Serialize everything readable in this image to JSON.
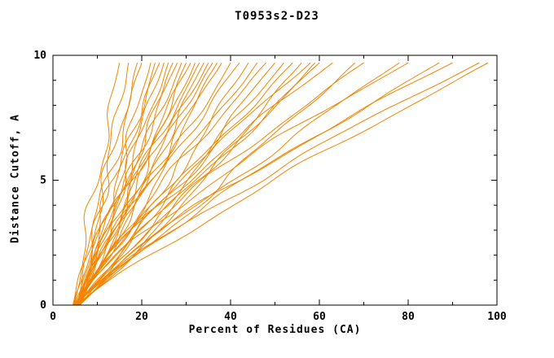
{
  "chart_data": {
    "type": "line",
    "title": "T0953s2-D23",
    "xlabel": "Percent of Residues (CA)",
    "ylabel": "Distance Cutoff, A",
    "xlim": [
      0,
      100
    ],
    "ylim": [
      0,
      10
    ],
    "x_ticks": [
      0,
      20,
      40,
      60,
      80,
      100
    ],
    "y_ticks": [
      0,
      5,
      10
    ],
    "x_minor_step": 10,
    "y_minor_step": 1,
    "grid": false,
    "legend": "none",
    "line_color": "#f28500",
    "axis_color": "#000000",
    "background": "#ffffff",
    "curve_top_y": 9.7,
    "wiggle": 1.1,
    "series": [
      {
        "start_x": 4.8,
        "top_x": 15,
        "shape": 1.05
      },
      {
        "start_x": 5.2,
        "top_x": 17,
        "shape": 0.92
      },
      {
        "start_x": 4.5,
        "top_x": 19,
        "shape": 1.0
      },
      {
        "start_x": 5.6,
        "top_x": 20,
        "shape": 1.15
      },
      {
        "start_x": 5.0,
        "top_x": 22,
        "shape": 0.88
      },
      {
        "start_x": 6.0,
        "top_x": 23,
        "shape": 1.0
      },
      {
        "start_x": 4.7,
        "top_x": 24,
        "shape": 1.12
      },
      {
        "start_x": 5.3,
        "top_x": 25,
        "shape": 0.95
      },
      {
        "start_x": 6.2,
        "top_x": 26,
        "shape": 1.05
      },
      {
        "start_x": 4.9,
        "top_x": 27,
        "shape": 0.9
      },
      {
        "start_x": 5.5,
        "top_x": 28,
        "shape": 1.1
      },
      {
        "start_x": 5.0,
        "top_x": 29,
        "shape": 1.0
      },
      {
        "start_x": 6.1,
        "top_x": 30,
        "shape": 0.93
      },
      {
        "start_x": 4.8,
        "top_x": 31,
        "shape": 1.07
      },
      {
        "start_x": 5.4,
        "top_x": 32,
        "shape": 0.97
      },
      {
        "start_x": 6.0,
        "top_x": 33,
        "shape": 1.12
      },
      {
        "start_x": 4.6,
        "top_x": 34,
        "shape": 0.9
      },
      {
        "start_x": 5.2,
        "top_x": 35,
        "shape": 1.03
      },
      {
        "start_x": 5.8,
        "top_x": 36,
        "shape": 1.18
      },
      {
        "start_x": 5.0,
        "top_x": 37,
        "shape": 0.94
      },
      {
        "start_x": 5.5,
        "top_x": 38,
        "shape": 1.06
      },
      {
        "start_x": 4.9,
        "top_x": 40,
        "shape": 0.96
      },
      {
        "start_x": 5.3,
        "top_x": 42,
        "shape": 1.1
      },
      {
        "start_x": 6.0,
        "top_x": 44,
        "shape": 0.9
      },
      {
        "start_x": 5.1,
        "top_x": 46,
        "shape": 1.04
      },
      {
        "start_x": 5.6,
        "top_x": 48,
        "shape": 1.14
      },
      {
        "start_x": 4.8,
        "top_x": 50,
        "shape": 0.95
      },
      {
        "start_x": 5.9,
        "top_x": 52,
        "shape": 1.0
      },
      {
        "start_x": 5.2,
        "top_x": 54,
        "shape": 1.08
      },
      {
        "start_x": 5.5,
        "top_x": 56,
        "shape": 0.9
      },
      {
        "start_x": 5.0,
        "top_x": 58,
        "shape": 1.2
      },
      {
        "start_x": 6.0,
        "top_x": 59,
        "shape": 0.97
      },
      {
        "start_x": 5.3,
        "top_x": 60,
        "shape": 1.05
      },
      {
        "start_x": 5.6,
        "top_x": 63,
        "shape": 1.28
      },
      {
        "start_x": 5.0,
        "top_x": 68,
        "shape": 0.95
      },
      {
        "start_x": 6.1,
        "top_x": 70,
        "shape": 1.22
      },
      {
        "start_x": 5.2,
        "top_x": 78,
        "shape": 1.1
      },
      {
        "start_x": 5.5,
        "top_x": 80,
        "shape": 1.33
      },
      {
        "start_x": 5.0,
        "top_x": 87,
        "shape": 1.15
      },
      {
        "start_x": 5.8,
        "top_x": 90,
        "shape": 1.28
      },
      {
        "start_x": 5.1,
        "top_x": 96,
        "shape": 1.2
      },
      {
        "start_x": 5.4,
        "top_x": 98,
        "shape": 1.1
      }
    ]
  }
}
